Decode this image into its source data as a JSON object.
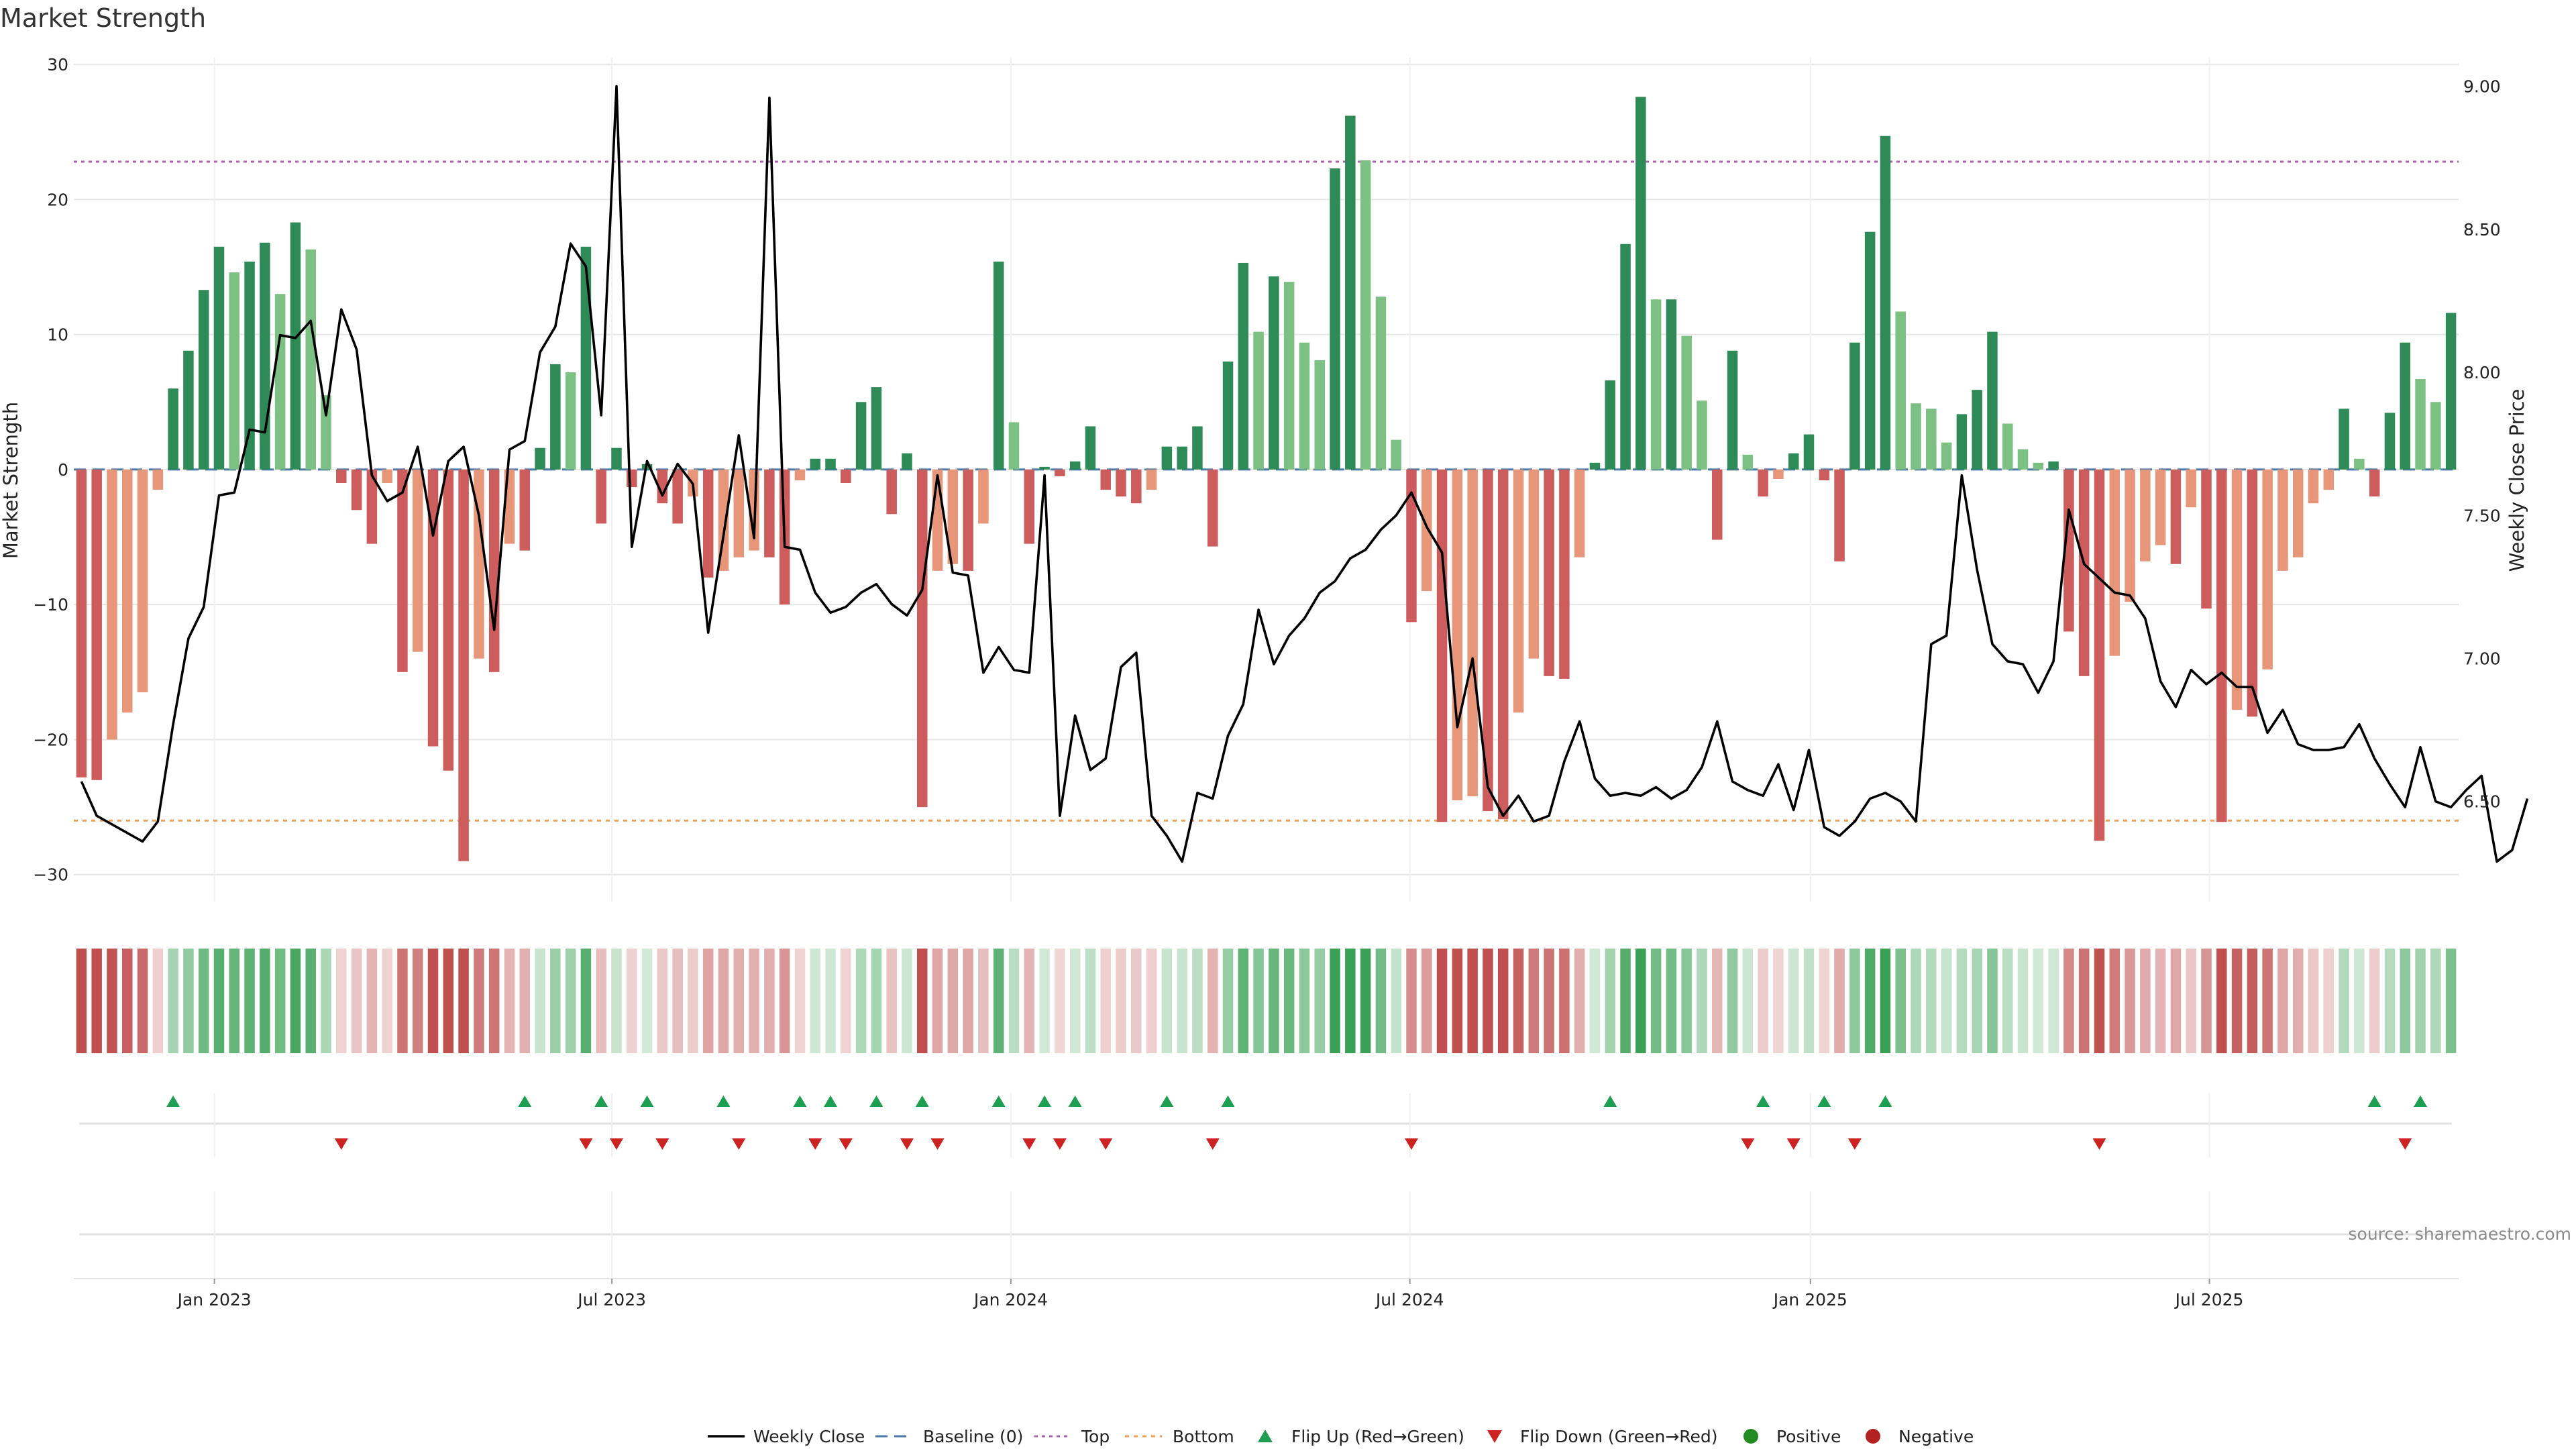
{
  "title": "Market Strength",
  "source": "source: sharemaestro.com",
  "chart_data": {
    "type": "bar+line",
    "title": "Market Strength",
    "ylabel_left": "Market Strength",
    "ylabel_right": "Weekly Close Price",
    "ylim_left": [
      -32,
      30.5
    ],
    "ylim_right": [
      6.15,
      9.1
    ],
    "left_ticks": [
      30,
      20,
      10,
      0,
      -10,
      -20,
      -30
    ],
    "left_tick_labels": [
      "30",
      "20",
      "10",
      "0",
      "−10",
      "−20",
      "−30"
    ],
    "right_ticks": [
      9.0,
      8.5,
      8.0,
      7.5,
      7.0,
      6.5
    ],
    "right_tick_labels": [
      "9.00",
      "8.50",
      "8.00",
      "7.50",
      "7.00",
      "6.50"
    ],
    "x_date_labels": [
      "Jan 2023",
      "Jul 2023",
      "Jan 2024",
      "Jul 2024",
      "Jan 2025",
      "Jul 2025"
    ],
    "x_date_week_index": [
      9.2,
      35.2,
      61.3,
      87.4,
      113.6,
      139.7
    ],
    "top_level": 22.8,
    "bottom_level": -26,
    "strength": [
      -22.8,
      -23,
      -20,
      -18,
      -16.5,
      -1.5,
      6,
      8.8,
      13.3,
      16.5,
      14.6,
      15.4,
      16.8,
      13,
      18.3,
      16.3,
      5.5,
      -1,
      -3,
      -5.5,
      -1,
      -15,
      -13.5,
      -20.5,
      -22.3,
      -29,
      -14,
      -15,
      -5.5,
      -6,
      1.6,
      7.8,
      7.2,
      16.5,
      -4,
      1.6,
      -1.3,
      0.4,
      -2.5,
      -4,
      -2,
      -8,
      -7.5,
      -6.5,
      -6,
      -6.5,
      -10,
      -0.8,
      0.8,
      0.8,
      -1,
      5,
      6.1,
      -3.3,
      1.2,
      -25,
      -7.5,
      -7,
      -7.5,
      -4,
      15.4,
      3.5,
      -5.5,
      0.2,
      -0.5,
      0.6,
      3.2,
      -1.5,
      -2,
      -2.5,
      -1.5,
      1.7,
      1.7,
      3.2,
      -5.7,
      8,
      15.3,
      10.2,
      14.3,
      13.9,
      9.4,
      8.1,
      22.3,
      26.2,
      22.9,
      12.8,
      2.2,
      -11.3,
      -9,
      -26.1,
      -24.5,
      -24.2,
      -25.3,
      -25.9,
      -18,
      -14,
      -15.3,
      -15.5,
      -6.5,
      0.5,
      6.6,
      16.7,
      27.6,
      12.6,
      12.6,
      9.9,
      5.1,
      -5.2,
      8.8,
      1.1,
      -2,
      -0.7,
      1.2,
      2.6,
      -0.8,
      -6.8,
      9.4,
      17.6,
      24.7,
      11.7,
      4.9,
      4.5,
      2,
      4.1,
      5.9,
      10.2,
      3.4,
      1.5,
      0.5,
      0.6,
      -12,
      -15.3,
      -27.5,
      -13.8,
      -9.8,
      -6.8,
      -5.6,
      -7,
      -2.8,
      -10.3,
      -26.1,
      -17.8,
      -18.3,
      -14.8,
      -7.5,
      -6.5,
      -2.5,
      -1.5,
      4.5,
      0.8,
      -2,
      4.2,
      9.4,
      6.7,
      5,
      11.6
    ],
    "price": [
      6.57,
      6.45,
      6.42,
      6.39,
      6.36,
      6.43,
      6.77,
      7.07,
      7.18,
      7.57,
      7.58,
      7.8,
      7.79,
      8.13,
      8.12,
      8.18,
      7.85,
      8.22,
      8.08,
      7.64,
      7.55,
      7.58,
      7.74,
      7.43,
      7.69,
      7.74,
      7.5,
      7.1,
      7.73,
      7.76,
      8.07,
      8.16,
      8.45,
      8.37,
      7.85,
      9.0,
      7.39,
      7.69,
      7.57,
      7.68,
      7.61,
      7.09,
      7.43,
      7.78,
      7.42,
      8.96,
      7.39,
      7.38,
      7.23,
      7.16,
      7.18,
      7.23,
      7.26,
      7.19,
      7.15,
      7.24,
      7.64,
      7.3,
      7.29,
      6.95,
      7.04,
      6.96,
      6.95,
      7.64,
      6.45,
      6.8,
      6.61,
      6.65,
      6.97,
      7.02,
      6.45,
      6.38,
      6.29,
      6.53,
      6.51,
      6.73,
      6.84,
      7.17,
      6.98,
      7.08,
      7.14,
      7.23,
      7.27,
      7.35,
      7.38,
      7.45,
      7.5,
      7.58,
      7.46,
      7.37,
      6.76,
      7.0,
      6.55,
      6.45,
      6.52,
      6.43,
      6.45,
      6.64,
      6.78,
      6.58,
      6.52,
      6.53,
      6.52,
      6.55,
      6.51,
      6.54,
      6.62,
      6.78,
      6.57,
      6.54,
      6.52,
      6.63,
      6.47,
      6.68,
      6.41,
      6.38,
      6.43,
      6.51,
      6.53,
      6.5,
      6.43,
      7.05,
      7.08,
      7.64,
      7.31,
      7.05,
      6.99,
      6.98,
      6.88,
      6.99,
      7.52,
      7.33,
      7.28,
      7.23,
      7.22,
      7.14,
      6.92,
      6.83,
      6.96,
      6.91,
      6.95,
      6.9,
      6.9,
      6.74,
      6.82,
      6.7,
      6.68,
      6.68,
      6.69,
      6.77,
      6.65,
      6.56,
      6.48,
      6.69,
      6.5,
      6.48,
      6.54,
      6.59,
      6.29,
      6.33,
      6.51
    ],
    "flip_up_week": [
      6,
      29,
      34,
      37,
      42,
      47,
      49,
      52,
      55,
      60,
      63,
      65,
      71,
      75,
      100,
      110,
      114,
      118,
      150,
      153
    ],
    "flip_down_week": [
      17,
      33,
      35,
      38,
      43,
      48,
      50,
      54,
      56,
      62,
      64,
      67,
      74,
      87,
      109,
      112,
      116,
      132,
      152
    ],
    "legend": [
      "Weekly Close",
      "Baseline (0)",
      "Top",
      "Bottom",
      "Flip Up (Red→Green)",
      "Flip Down (Green→Red)",
      "Positive",
      "Negative"
    ]
  },
  "colors": {
    "dark_green": "#2e8b57",
    "light_green": "#7cc083",
    "dark_red": "#cd5c5c",
    "light_salmon": "#e8967a",
    "line": "#000000",
    "top_line": "#b060b0",
    "bottom_line": "#f0a050",
    "baseline": "#4a78a8",
    "flip_up": "#1e9e50",
    "flip_down": "#cc2222",
    "positive_dot": "#228b22",
    "negative_dot": "#b22222",
    "grid": "#e6e6e6"
  }
}
